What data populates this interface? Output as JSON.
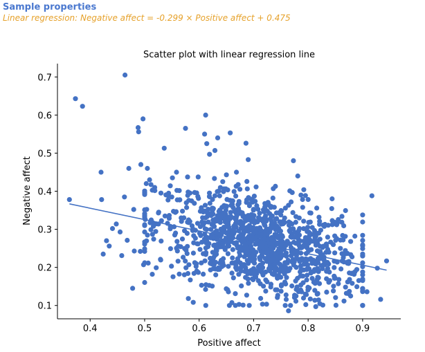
{
  "header": {
    "title": "Sample properties",
    "subtitle": "Linear regression: Negative affect = -0.299 × Positive affect + 0.475"
  },
  "colors": {
    "header_title": "#4a78cf",
    "header_subtitle": "#e6a12a",
    "points": "#4472c4",
    "regression_line": "#4472c4"
  },
  "chart_data": {
    "type": "scatter",
    "title": "Scatter plot with linear regression line",
    "xlabel": "Positive affect",
    "ylabel": "Negative affect",
    "xlim": [
      0.34,
      0.97
    ],
    "ylim": [
      0.065,
      0.735
    ],
    "xticks": [
      0.4,
      0.5,
      0.6,
      0.7,
      0.8,
      0.9
    ],
    "xtick_labels": [
      "0.4",
      "0.5",
      "0.6",
      "0.7",
      "0.8",
      "0.9"
    ],
    "yticks": [
      0.1,
      0.2,
      0.3,
      0.4,
      0.5,
      0.6,
      0.7
    ],
    "ytick_labels": [
      "0.1",
      "0.2",
      "0.3",
      "0.4",
      "0.5",
      "0.6",
      "0.7"
    ],
    "grid": false,
    "regression": {
      "slope": -0.299,
      "intercept": 0.475,
      "x_range": [
        0.362,
        0.944
      ]
    },
    "points": {
      "x": [
        0.362,
        0.373,
        0.386,
        0.42,
        0.464,
        0.497,
        0.488,
        0.489,
        0.471,
        0.493,
        0.505,
        0.536,
        0.575,
        0.612,
        0.61,
        0.634,
        0.657,
        0.614,
        0.629,
        0.619,
        0.686,
        0.69,
        0.421,
        0.424,
        0.43,
        0.435,
        0.441,
        0.448,
        0.455,
        0.463,
        0.468,
        0.458,
        0.478,
        0.481,
        0.492,
        0.498,
        0.503,
        0.509,
        0.48,
        0.501,
        0.516,
        0.514,
        0.764,
        0.773,
        0.781,
        0.844,
        0.917,
        0.933,
        0.944,
        0.908,
        0.878,
        0.927,
        0.775,
        0.792,
        0.814,
        0.827
      ],
      "y": [
        0.378,
        0.643,
        0.623,
        0.45,
        0.705,
        0.59,
        0.567,
        0.556,
        0.46,
        0.47,
        0.46,
        0.513,
        0.565,
        0.6,
        0.55,
        0.54,
        0.553,
        0.525,
        0.507,
        0.497,
        0.526,
        0.483,
        0.378,
        0.235,
        0.27,
        0.256,
        0.302,
        0.314,
        0.293,
        0.385,
        0.271,
        0.231,
        0.145,
        0.243,
        0.242,
        0.207,
        0.42,
        0.43,
        0.352,
        0.326,
        0.308,
        0.182,
        0.086,
        0.48,
        0.44,
        0.38,
        0.388,
        0.116,
        0.217,
        0.136,
        0.125,
        0.198,
        0.121,
        0.404,
        0.097,
        0.101
      ]
    },
    "cloud": {
      "count": 1150,
      "x_center": 0.71,
      "x_sd": 0.095,
      "x_min": 0.5,
      "x_max": 0.9,
      "slope": -0.299,
      "intercept": 0.475,
      "y_sd": 0.065,
      "y_min": 0.1,
      "y_max": 0.45
    }
  }
}
